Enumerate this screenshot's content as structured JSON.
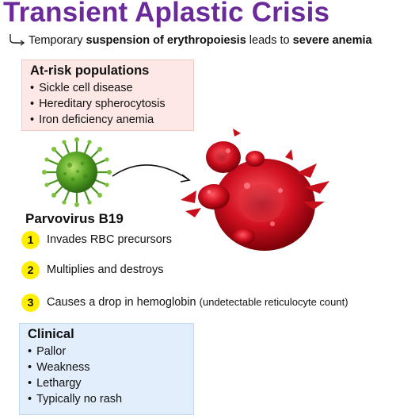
{
  "title": "Transient Aplastic Crisis",
  "subtitle": {
    "part1": "Temporary ",
    "bold1": "suspension of erythropoiesis",
    "part2": " leads to ",
    "bold2": "severe anemia"
  },
  "at_risk": {
    "heading": "At-risk populations",
    "items": [
      "Sickle cell disease",
      "Hereditary spherocytosis",
      "Iron deficiency anemia"
    ]
  },
  "virus": {
    "name": "Parvovirus B19",
    "icon": "virus-icon"
  },
  "steps": [
    {
      "number": "1",
      "text": "Invades RBC precursors",
      "note": ""
    },
    {
      "number": "2",
      "text": "Multiplies and destroys",
      "note": ""
    },
    {
      "number": "3",
      "text": "Causes a drop in hemoglobin",
      "note": "(undetectable reticulocyte count)"
    }
  ],
  "clinical": {
    "heading": "Clinical",
    "items": [
      "Pallor",
      "Weakness",
      "Lethargy",
      "Typically no rash"
    ]
  },
  "colors": {
    "title": "#6a2a9a",
    "step_badge": "#ffee00",
    "risk_box": "#fde8e6",
    "clinical_box": "#e2eefb",
    "virus": "#5aa626",
    "rbc": "#d01020"
  }
}
